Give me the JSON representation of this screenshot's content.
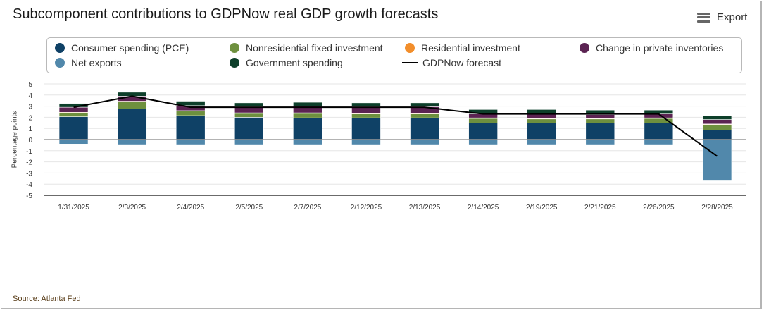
{
  "title": "Subcomponent contributions to GDPNow real GDP growth forecasts",
  "export": {
    "label": "Export",
    "icon": "hamburger-menu-icon"
  },
  "source": "Source: Atlanta Fed",
  "colors": {
    "pce": "#0f4166",
    "nonres": "#6e903e",
    "residential": "#f28e2b",
    "inventories": "#5b2352",
    "net_exports": "#5188ab",
    "government": "#0d3f2a",
    "forecast_line": "#000000"
  },
  "legend": [
    {
      "key": "pce",
      "label": "Consumer spending (PCE)",
      "kind": "dot"
    },
    {
      "key": "nonres",
      "label": "Nonresidential fixed investment",
      "kind": "dot"
    },
    {
      "key": "residential",
      "label": "Residential investment",
      "kind": "dot"
    },
    {
      "key": "inventories",
      "label": "Change in private inventories",
      "kind": "dot"
    },
    {
      "key": "net_exports",
      "label": "Net exports",
      "kind": "dot"
    },
    {
      "key": "government",
      "label": "Government spending",
      "kind": "dot"
    },
    {
      "key": "forecast_line",
      "label": "GDPNow forecast",
      "kind": "line"
    }
  ],
  "chart_data": {
    "type": "bar",
    "stacked": true,
    "title": "Subcomponent contributions to GDPNow real GDP growth forecasts",
    "xlabel": "",
    "ylabel": "Percentage points",
    "ylim": [
      -5,
      5
    ],
    "yticks": [
      -5,
      -4,
      -3,
      -2,
      -1,
      0,
      1,
      2,
      3,
      4,
      5
    ],
    "grid": true,
    "legend_position": "top",
    "categories": [
      "1/31/2025",
      "2/3/2025",
      "2/4/2025",
      "2/5/2025",
      "2/7/2025",
      "2/12/2025",
      "2/13/2025",
      "2/14/2025",
      "2/19/2025",
      "2/21/2025",
      "2/26/2025",
      "2/28/2025"
    ],
    "series": [
      {
        "key": "pce",
        "name": "Consumer spending (PCE)",
        "values": [
          2.05,
          2.75,
          2.15,
          2.0,
          1.95,
          1.95,
          1.95,
          1.5,
          1.5,
          1.5,
          1.5,
          0.85
        ]
      },
      {
        "key": "nonres",
        "name": "Nonresidential fixed investment",
        "values": [
          0.35,
          0.65,
          0.4,
          0.35,
          0.4,
          0.35,
          0.35,
          0.4,
          0.35,
          0.35,
          0.4,
          0.5
        ]
      },
      {
        "key": "residential",
        "name": "Residential investment",
        "values": [
          0.05,
          0.05,
          0.05,
          0.05,
          0.05,
          0.05,
          0.05,
          0.05,
          0.05,
          0.05,
          0.05,
          0.05
        ]
      },
      {
        "key": "inventories",
        "name": "Change in private inventories",
        "values": [
          0.45,
          0.45,
          0.45,
          0.55,
          0.6,
          0.6,
          0.6,
          0.35,
          0.4,
          0.35,
          0.35,
          0.4
        ]
      },
      {
        "key": "net_exports",
        "name": "Net exports",
        "values": [
          -0.4,
          -0.45,
          -0.45,
          -0.45,
          -0.45,
          -0.45,
          -0.45,
          -0.45,
          -0.45,
          -0.45,
          -0.45,
          -3.7
        ]
      },
      {
        "key": "government",
        "name": "Government spending",
        "values": [
          0.35,
          0.35,
          0.4,
          0.35,
          0.35,
          0.35,
          0.35,
          0.4,
          0.4,
          0.4,
          0.35,
          0.35
        ]
      }
    ],
    "line": {
      "key": "forecast_line",
      "name": "GDPNow forecast",
      "values": [
        2.9,
        3.9,
        2.9,
        2.9,
        2.9,
        2.9,
        2.9,
        2.3,
        2.3,
        2.3,
        2.3,
        -1.5
      ]
    }
  }
}
